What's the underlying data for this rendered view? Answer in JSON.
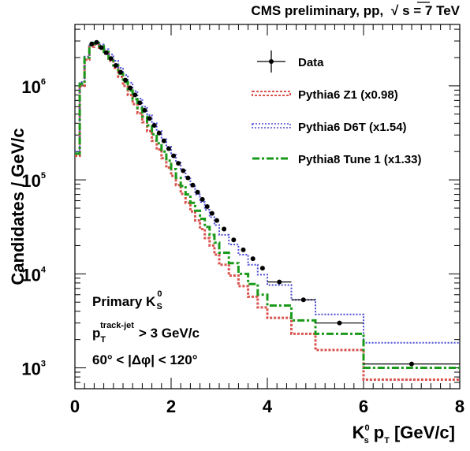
{
  "chart_data": {
    "type": "line",
    "header": "CMS preliminary, pp,",
    "header_sqrt": "√",
    "header_energy": "s = 7 TeV",
    "ylabel": "Candidates / GeV/c",
    "xlabel": {
      "k": "K",
      "k_sup": "0",
      "k_sub": "s",
      "p": "p",
      "p_sub": "T",
      "unit": "[GeV/c]"
    },
    "xlim": [
      0,
      8
    ],
    "ylim": [
      600,
      4500000
    ],
    "yscale": "log",
    "x_ticks": [
      "0",
      "2",
      "4",
      "6",
      "8"
    ],
    "y_ticks": [
      {
        "base": "10",
        "exp": "3",
        "value": 1000
      },
      {
        "base": "10",
        "exp": "4",
        "value": 10000
      },
      {
        "base": "10",
        "exp": "5",
        "value": 100000
      },
      {
        "base": "10",
        "exp": "6",
        "value": 1000000
      }
    ],
    "bin_edges": [
      0,
      0.1,
      0.2,
      0.3,
      0.4,
      0.5,
      0.6,
      0.7,
      0.8,
      0.9,
      1.0,
      1.1,
      1.2,
      1.3,
      1.4,
      1.5,
      1.6,
      1.7,
      1.8,
      1.9,
      2.0,
      2.1,
      2.2,
      2.3,
      2.4,
      2.5,
      2.6,
      2.7,
      2.8,
      2.9,
      3.0,
      3.2,
      3.4,
      3.6,
      3.8,
      4.0,
      4.5,
      5.0,
      6.0,
      8.0
    ],
    "annotation": {
      "line1": "Primary K",
      "line1_sup": "0",
      "line1_sub": "S",
      "line2_p": "p",
      "line2_sub": "T",
      "line2_sup": "track-jet",
      "line2_rest": "> 3 GeV/c",
      "line3": "60° < |Δφ| < 120°"
    },
    "legend_position": "top-right",
    "series": [
      {
        "name": "Data",
        "style": "points",
        "color": "#000000",
        "x": [
          0.35,
          0.45,
          0.55,
          0.65,
          0.75,
          0.85,
          0.95,
          1.05,
          1.15,
          1.25,
          1.35,
          1.45,
          1.55,
          1.65,
          1.75,
          1.85,
          1.95,
          2.05,
          2.15,
          2.25,
          2.35,
          2.45,
          2.55,
          2.65,
          2.75,
          2.85,
          2.95,
          3.1,
          3.3,
          3.5,
          3.7,
          3.9,
          4.25,
          4.75,
          5.5,
          7.0
        ],
        "y": [
          2800000,
          2900000,
          2550000,
          2250000,
          1950000,
          1650000,
          1400000,
          1150000,
          950000,
          800000,
          660000,
          550000,
          450000,
          380000,
          315000,
          260000,
          215000,
          180000,
          150000,
          125000,
          105000,
          88000,
          74000,
          62000,
          52000,
          44000,
          37000,
          30000,
          23000,
          18000,
          14500,
          11500,
          8200,
          5300,
          3000,
          1100
        ]
      },
      {
        "name": "Pythia6 Z1 (x0.98)",
        "style": "step",
        "color": "#d9534f",
        "values": [
          180000,
          1000000,
          1900000,
          2600000,
          2750000,
          2550000,
          2200000,
          1850000,
          1550000,
          1250000,
          1000000,
          800000,
          640000,
          510000,
          410000,
          330000,
          260000,
          210000,
          170000,
          135000,
          110000,
          88000,
          71000,
          57000,
          46000,
          37000,
          30000,
          24000,
          20000,
          16000,
          12500,
          9600,
          7400,
          5700,
          4400,
          3400,
          2300,
          1550,
          750
        ]
      },
      {
        "name": "Pythia6 D6T (x1.54)",
        "style": "step",
        "color": "#4a4ad4",
        "values": [
          200000,
          1100000,
          2050000,
          2750000,
          2900000,
          2750000,
          2450000,
          2150000,
          1850000,
          1550000,
          1300000,
          1080000,
          880000,
          730000,
          600000,
          490000,
          400000,
          330000,
          270000,
          225000,
          185000,
          152000,
          125000,
          103000,
          85000,
          70000,
          58000,
          48000,
          40000,
          33000,
          26000,
          20500,
          16000,
          12500,
          9800,
          7600,
          5300,
          3700,
          1850
        ]
      },
      {
        "name": "Pythia8 Tune 1 (x1.33)",
        "style": "step",
        "color": "#1a9a1a",
        "values": [
          190000,
          1050000,
          2000000,
          2700000,
          2850000,
          2650000,
          2300000,
          1950000,
          1650000,
          1350000,
          1100000,
          890000,
          720000,
          580000,
          470000,
          380000,
          305000,
          245000,
          200000,
          160000,
          130000,
          105000,
          86000,
          70000,
          57000,
          47000,
          38500,
          31500,
          26000,
          21500,
          16800,
          13000,
          10000,
          7800,
          6000,
          4600,
          3200,
          2300,
          1000
        ]
      }
    ]
  }
}
